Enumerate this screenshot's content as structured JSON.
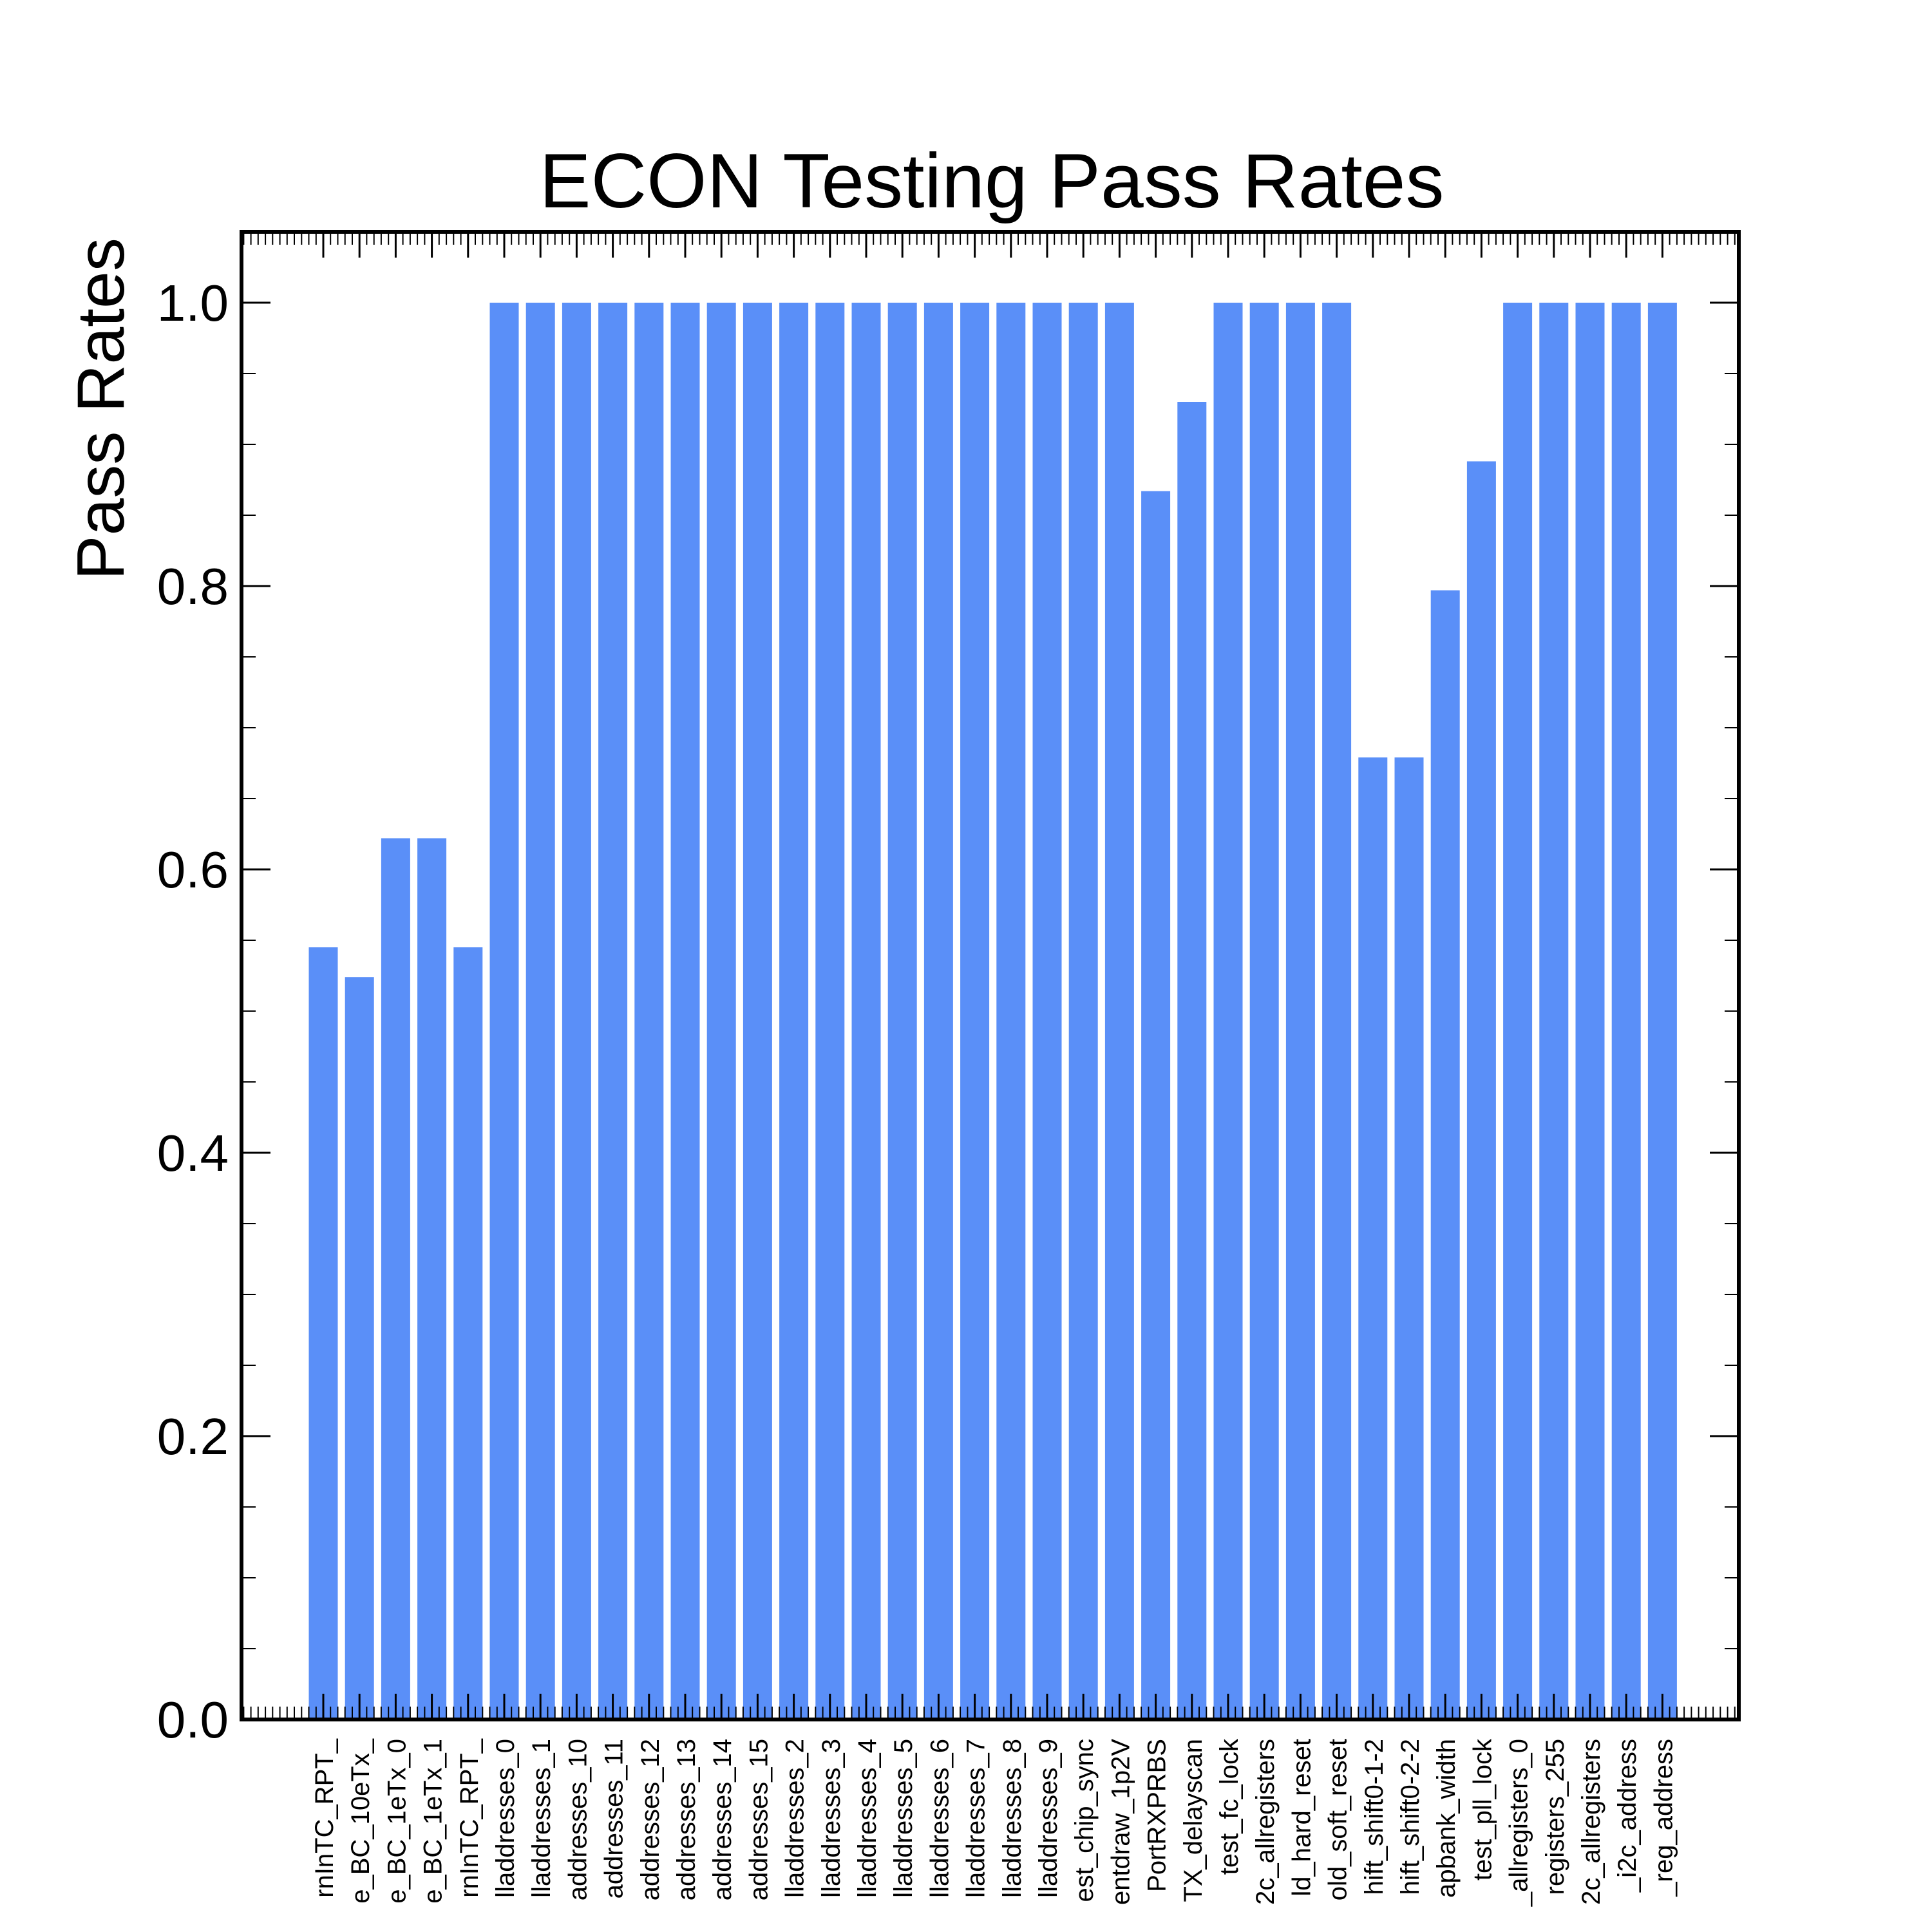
{
  "chart_data": {
    "type": "bar",
    "title": "ECON Testing Pass Rates",
    "xlabel": "",
    "ylabel": "Pass Rates",
    "ylim": [
      0,
      1.05
    ],
    "yticks": [
      "0.0",
      "0.2",
      "0.4",
      "0.6",
      "0.8",
      "1.0"
    ],
    "bar_color": "#5a8ff8",
    "categories": [
      "rnInTC_RPT_",
      "e_BC_10eTx_",
      "e_BC_1eTx_0",
      "e_BC_1eTx_1",
      "rnInTC_RPT_",
      "lladdresses_0",
      "lladdresses_1",
      "addresses_10",
      "addresses_11",
      "addresses_12",
      "addresses_13",
      "addresses_14",
      "addresses_15",
      "lladdresses_2",
      "lladdresses_3",
      "lladdresses_4",
      "lladdresses_5",
      "lladdresses_6",
      "lladdresses_7",
      "lladdresses_8",
      "lladdresses_9",
      "est_chip_sync",
      "entdraw_1p2V",
      "PortRXPRBS",
      "TX_delayscan",
      "test_fc_lock",
      "2c_allregisters",
      "ld_hard_reset",
      "old_soft_reset",
      "hift_shift0-1-2",
      "hift_shift0-2-2",
      "apbank_width",
      "test_pll_lock",
      "_allregisters_0",
      "registers_255",
      "2c_allregisters",
      "_i2c_address",
      "_reg_address"
    ],
    "values": [
      0.545,
      0.524,
      0.622,
      0.622,
      0.545,
      1.0,
      1.0,
      1.0,
      1.0,
      1.0,
      1.0,
      1.0,
      1.0,
      1.0,
      1.0,
      1.0,
      1.0,
      1.0,
      1.0,
      1.0,
      1.0,
      1.0,
      1.0,
      0.867,
      0.93,
      1.0,
      1.0,
      1.0,
      1.0,
      0.679,
      0.679,
      0.797,
      0.888,
      1.0,
      1.0,
      1.0,
      1.0,
      1.0
    ]
  }
}
